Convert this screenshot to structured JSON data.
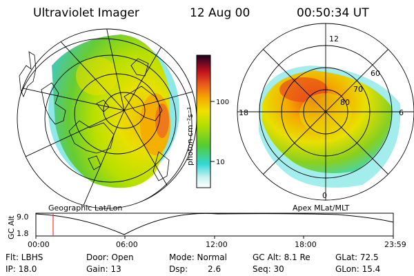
{
  "header": {
    "title": "Ultraviolet Imager",
    "date": "12 Aug 00",
    "time": "00:50:34 UT"
  },
  "colorbar": {
    "label": "photon cm⁻²s⁻¹",
    "ticks": [
      "100",
      "10"
    ]
  },
  "left_panel": {
    "caption": "Geographic Lat/Lon"
  },
  "right_panel": {
    "caption": "Apex MLat/MLT",
    "lat_labels": [
      "60",
      "70",
      "80"
    ],
    "mlt_labels": [
      "12",
      "18",
      "6",
      "0"
    ]
  },
  "altitude_strip": {
    "ylabel": "GC Alt",
    "y_ticks": [
      "9.0",
      "1.8"
    ],
    "x_ticks": [
      "00:00",
      "06:00",
      "12:00",
      "18:00",
      "23:59"
    ]
  },
  "info": {
    "flt": "Flt: LBHS",
    "ip": "IP: 18.0",
    "door": "Door: Open",
    "gain": "Gain: 13",
    "mode": "Mode: Normal",
    "dsp_label": "Dsp:",
    "dsp_value": "2.6",
    "gc_alt": "GC Alt: 8.1 Re",
    "seq": "Seq: 30",
    "glat": "GLat: 72.5",
    "glon": "GLon: 15.4"
  },
  "colors": {
    "cyan": "#33d6d6",
    "green": "#66cc33",
    "yellow": "#e8e000",
    "orange": "#f4a800",
    "red": "#e83a1a",
    "dark_red": "#8a0010",
    "marker": "#ff3333"
  }
}
